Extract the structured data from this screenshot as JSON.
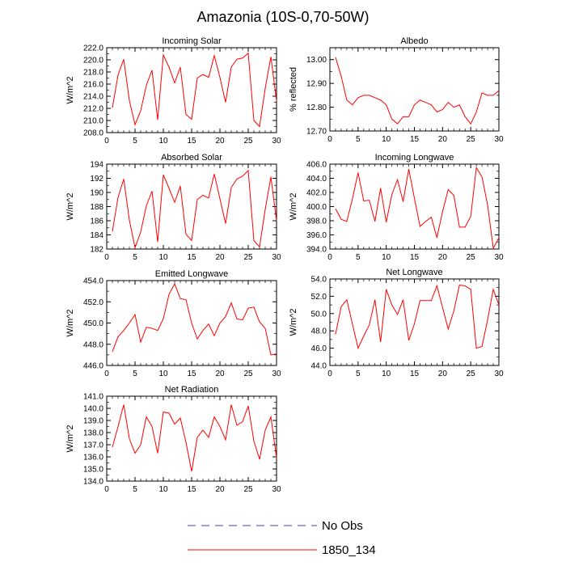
{
  "page_title": "Amazonia (10S-0,70-50W)",
  "legend": {
    "entries": [
      {
        "label": "No Obs",
        "color": "#4040c0",
        "style": "dashed"
      },
      {
        "label": "1850_134",
        "color": "#ff0000",
        "style": "solid"
      }
    ]
  },
  "chart_data": [
    {
      "type": "line",
      "title": "Incoming Solar",
      "ylabel": "W/m^2",
      "xlim": [
        0,
        30
      ],
      "ylim": [
        208,
        222
      ],
      "yticks": [
        "208.0",
        "210.0",
        "212.0",
        "214.0",
        "216.0",
        "218.0",
        "220.0",
        "222.0"
      ],
      "xticks": [
        "0",
        "5",
        "10",
        "15",
        "20",
        "25",
        "30"
      ],
      "series": [
        {
          "name": "1850_134",
          "color": "#ff0000",
          "x": [
            1,
            2,
            3,
            4,
            5,
            6,
            7,
            8,
            9,
            10,
            11,
            12,
            13,
            14,
            15,
            16,
            17,
            18,
            19,
            20,
            21,
            22,
            23,
            24,
            25,
            26,
            27,
            28,
            29,
            30
          ],
          "values": [
            212.1,
            217.5,
            220.1,
            213.3,
            209.3,
            211.6,
            215.8,
            218.3,
            210.1,
            220.8,
            218.8,
            216.2,
            218.8,
            211.0,
            210.2,
            217.0,
            217.6,
            217.1,
            220.7,
            217.1,
            213.0,
            218.8,
            220.1,
            220.3,
            221.1,
            210.0,
            209.0,
            215.3,
            220.5,
            213.2
          ]
        }
      ]
    },
    {
      "type": "line",
      "title": "Albedo",
      "ylabel": "% reflected",
      "xlim": [
        0,
        30
      ],
      "ylim": [
        12.7,
        13.05
      ],
      "yticks": [
        "12.70",
        "12.80",
        "12.90",
        "13.00"
      ],
      "xticks": [
        "0",
        "5",
        "10",
        "15",
        "20",
        "25",
        "30"
      ],
      "series": [
        {
          "name": "1850_134",
          "color": "#ff0000",
          "x": [
            1,
            2,
            3,
            4,
            5,
            6,
            7,
            8,
            9,
            10,
            11,
            12,
            13,
            14,
            15,
            16,
            17,
            18,
            19,
            20,
            21,
            22,
            23,
            24,
            25,
            26,
            27,
            28,
            29,
            30
          ],
          "values": [
            13.01,
            12.93,
            12.83,
            12.81,
            12.84,
            12.85,
            12.85,
            12.84,
            12.83,
            12.81,
            12.75,
            12.73,
            12.76,
            12.76,
            12.81,
            12.83,
            12.82,
            12.81,
            12.78,
            12.79,
            12.82,
            12.8,
            12.81,
            12.76,
            12.73,
            12.78,
            12.86,
            12.85,
            12.85,
            12.87
          ]
        }
      ]
    },
    {
      "type": "line",
      "title": "Absorbed Solar",
      "ylabel": "W/m^2",
      "xlim": [
        0,
        30
      ],
      "ylim": [
        182,
        194
      ],
      "yticks": [
        "182",
        "184",
        "186",
        "188",
        "190",
        "192",
        "194"
      ],
      "xticks": [
        "0",
        "5",
        "10",
        "15",
        "20",
        "25",
        "30"
      ],
      "series": [
        {
          "name": "1850_134",
          "color": "#ff0000",
          "x": [
            1,
            2,
            3,
            4,
            5,
            6,
            7,
            8,
            9,
            10,
            11,
            12,
            13,
            14,
            15,
            16,
            17,
            18,
            19,
            20,
            21,
            22,
            23,
            24,
            25,
            26,
            27,
            28,
            29,
            30
          ],
          "values": [
            184.5,
            189.3,
            191.9,
            186.1,
            182.2,
            184.4,
            188.1,
            190.2,
            183.0,
            192.5,
            190.6,
            188.6,
            190.9,
            184.1,
            183.2,
            189.0,
            189.6,
            189.2,
            192.6,
            189.1,
            185.6,
            190.7,
            191.9,
            192.3,
            193.1,
            183.2,
            182.3,
            187.6,
            192.2,
            186.0
          ]
        }
      ]
    },
    {
      "type": "line",
      "title": "Incoming Longwave",
      "ylabel": "W/m^2",
      "xlim": [
        0,
        30
      ],
      "ylim": [
        394,
        406
      ],
      "yticks": [
        "394.0",
        "396.0",
        "398.0",
        "400.0",
        "402.0",
        "404.0",
        "406.0"
      ],
      "xticks": [
        "0",
        "5",
        "10",
        "15",
        "20",
        "25",
        "30"
      ],
      "series": [
        {
          "name": "1850_134",
          "color": "#ff0000",
          "x": [
            1,
            2,
            3,
            4,
            5,
            6,
            7,
            8,
            9,
            10,
            11,
            12,
            13,
            14,
            15,
            16,
            17,
            18,
            19,
            20,
            21,
            22,
            23,
            24,
            25,
            26,
            27,
            28,
            29,
            30
          ],
          "values": [
            399.7,
            398.2,
            397.9,
            401.1,
            404.8,
            400.8,
            400.9,
            397.9,
            402.6,
            397.8,
            401.7,
            403.8,
            400.7,
            405.3,
            401.2,
            397.2,
            397.9,
            398.5,
            395.6,
            399.3,
            402.4,
            401.6,
            397.1,
            397.1,
            398.6,
            405.5,
            404.2,
            400.2,
            394.1,
            395.6
          ]
        }
      ]
    },
    {
      "type": "line",
      "title": "Emitted Longwave",
      "ylabel": "W/m^2",
      "xlim": [
        0,
        30
      ],
      "ylim": [
        446,
        454
      ],
      "yticks": [
        "446.0",
        "448.0",
        "450.0",
        "452.0",
        "454.0"
      ],
      "xticks": [
        "0",
        "5",
        "10",
        "15",
        "20",
        "25",
        "30"
      ],
      "series": [
        {
          "name": "1850_134",
          "color": "#ff0000",
          "x": [
            1,
            2,
            3,
            4,
            5,
            6,
            7,
            8,
            9,
            10,
            11,
            12,
            13,
            14,
            15,
            16,
            17,
            18,
            19,
            20,
            21,
            22,
            23,
            24,
            25,
            26,
            27,
            28,
            29,
            30
          ],
          "values": [
            447.3,
            448.7,
            449.3,
            450.0,
            450.8,
            448.2,
            449.6,
            449.5,
            449.3,
            450.4,
            452.7,
            453.7,
            452.3,
            452.2,
            450.0,
            448.5,
            449.3,
            449.9,
            448.8,
            450.0,
            450.6,
            451.9,
            450.4,
            450.3,
            451.4,
            451.5,
            450.1,
            449.5,
            447.0,
            447.1
          ]
        }
      ]
    },
    {
      "type": "line",
      "title": "Net Longwave",
      "ylabel": "W/m^2",
      "xlim": [
        0,
        30
      ],
      "ylim": [
        44,
        54
      ],
      "yticks": [
        "44.0",
        "46.0",
        "48.0",
        "50.0",
        "52.0",
        "54.0"
      ],
      "xticks": [
        "0",
        "5",
        "10",
        "15",
        "20",
        "25",
        "30"
      ],
      "series": [
        {
          "name": "1850_134",
          "color": "#ff0000",
          "x": [
            1,
            2,
            3,
            4,
            5,
            6,
            7,
            8,
            9,
            10,
            11,
            12,
            13,
            14,
            15,
            16,
            17,
            18,
            19,
            20,
            21,
            22,
            23,
            24,
            25,
            26,
            27,
            28,
            29,
            30
          ],
          "values": [
            47.6,
            50.8,
            51.6,
            48.8,
            46.0,
            47.4,
            48.7,
            51.6,
            46.7,
            52.8,
            51.0,
            49.9,
            51.6,
            46.9,
            48.8,
            51.5,
            51.5,
            51.5,
            53.2,
            50.7,
            48.2,
            50.3,
            53.3,
            53.2,
            52.8,
            46.0,
            46.2,
            49.3,
            52.8,
            51.0
          ]
        }
      ]
    },
    {
      "type": "line",
      "title": "Net Radiation",
      "ylabel": "W/m^2",
      "xlim": [
        0,
        30
      ],
      "ylim": [
        134,
        141
      ],
      "yticks": [
        "134.0",
        "135.0",
        "136.0",
        "137.0",
        "138.0",
        "139.0",
        "140.0",
        "141.0"
      ],
      "xticks": [
        "0",
        "5",
        "10",
        "15",
        "20",
        "25",
        "30"
      ],
      "series": [
        {
          "name": "1850_134",
          "color": "#ff0000",
          "x": [
            1,
            2,
            3,
            4,
            5,
            6,
            7,
            8,
            9,
            10,
            11,
            12,
            13,
            14,
            15,
            16,
            17,
            18,
            19,
            20,
            21,
            22,
            23,
            24,
            25,
            26,
            27,
            28,
            29,
            30
          ],
          "values": [
            136.8,
            138.5,
            140.3,
            137.5,
            136.3,
            137.0,
            139.3,
            138.5,
            136.3,
            139.7,
            139.6,
            138.7,
            139.2,
            137.2,
            134.8,
            137.6,
            138.2,
            137.6,
            139.3,
            138.5,
            137.4,
            140.3,
            138.6,
            138.9,
            140.2,
            137.3,
            135.8,
            138.2,
            139.3,
            135.9
          ]
        }
      ]
    }
  ]
}
